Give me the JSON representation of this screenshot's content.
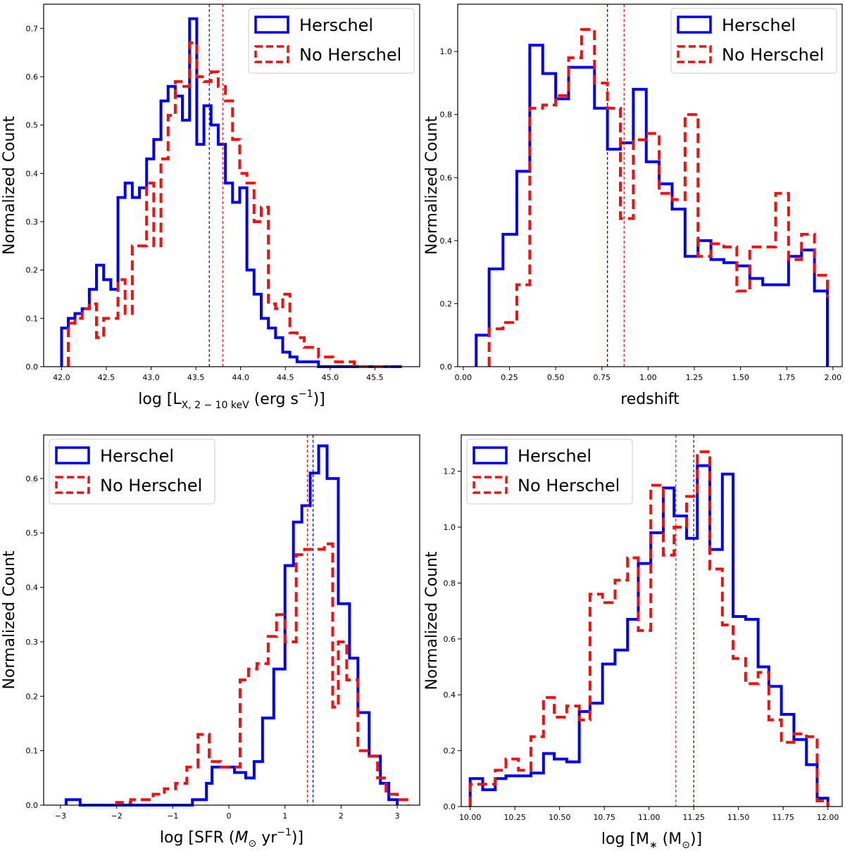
{
  "colors": {
    "herschel": "#0000ee",
    "no_herschel": "#ee1111",
    "axis": "#000000",
    "legend_border": "#cccccc"
  },
  "chart_data": [
    {
      "type": "histogram-step",
      "ylabel": "Normalized Count",
      "xlabel": "log [L",
      "xlabel_sub": "X, 2 − 10 keV",
      "xlabel_tail": " (erg s",
      "xlabel_sup": "−1",
      "xlabel_end": ")]",
      "xlim": [
        41.8,
        46.0
      ],
      "ylim": [
        0,
        0.75
      ],
      "xticks": [
        42.0,
        42.5,
        43.0,
        43.5,
        44.0,
        44.5,
        45.0,
        45.5
      ],
      "xtick_labels": [
        "42.0",
        "42.5",
        "43.0",
        "43.5",
        "44.0",
        "44.5",
        "45.0",
        "45.5"
      ],
      "yticks": [
        0.0,
        0.1,
        0.2,
        0.3,
        0.4,
        0.5,
        0.6,
        0.7
      ],
      "ytick_labels": [
        "0.0",
        "0.1",
        "0.2",
        "0.3",
        "0.4",
        "0.5",
        "0.6",
        "0.7"
      ],
      "legend_position": "upper right",
      "series": [
        {
          "name": "Herschel",
          "style": "solid",
          "color_key": "herschel",
          "median": 43.65,
          "edges": [
            42.0,
            42.075,
            42.15,
            42.23,
            42.31,
            42.39,
            42.47,
            42.55,
            42.63,
            42.71,
            42.79,
            42.87,
            42.95,
            43.03,
            43.11,
            43.19,
            43.27,
            43.35,
            43.43,
            43.51,
            43.59,
            43.67,
            43.75,
            43.83,
            43.91,
            43.99,
            44.07,
            44.15,
            44.23,
            44.31,
            44.39,
            44.47,
            44.55,
            44.63,
            44.71,
            44.79,
            44.87,
            44.95,
            45.03,
            45.11,
            45.19,
            45.27,
            45.35,
            45.43,
            45.51,
            45.59,
            45.67,
            45.8
          ],
          "values": [
            0.08,
            0.1,
            0.11,
            0.12,
            0.16,
            0.21,
            0.18,
            0.16,
            0.35,
            0.38,
            0.35,
            0.37,
            0.43,
            0.47,
            0.55,
            0.58,
            0.56,
            0.51,
            0.72,
            0.46,
            0.54,
            0.5,
            0.46,
            0.38,
            0.34,
            0.37,
            0.2,
            0.15,
            0.1,
            0.08,
            0.06,
            0.03,
            0.02,
            0.01,
            0.01,
            0.01,
            0,
            0,
            0,
            0,
            0,
            0,
            0,
            0,
            0,
            0,
            0
          ]
        },
        {
          "name": "No Herschel",
          "style": "dashed",
          "color_key": "no_herschel",
          "median": 43.8,
          "edges": [
            42.075,
            42.15,
            42.23,
            42.31,
            42.39,
            42.47,
            42.55,
            42.63,
            42.71,
            42.79,
            42.87,
            42.95,
            43.03,
            43.11,
            43.19,
            43.27,
            43.35,
            43.43,
            43.51,
            43.59,
            43.67,
            43.75,
            43.83,
            43.91,
            43.99,
            44.07,
            44.15,
            44.23,
            44.31,
            44.39,
            44.47,
            44.55,
            44.63,
            44.71,
            44.79,
            44.87,
            44.95,
            45.03,
            45.11,
            45.19,
            45.27,
            45.35,
            45.43,
            45.51,
            45.59,
            45.67
          ],
          "values": [
            0.09,
            0.1,
            0.12,
            0.13,
            0.06,
            0.1,
            0.1,
            0.18,
            0.11,
            0.25,
            0.25,
            0.38,
            0.25,
            0.43,
            0.52,
            0.59,
            0.58,
            0.67,
            0.6,
            0.59,
            0.61,
            0.58,
            0.55,
            0.47,
            0.4,
            0.38,
            0.3,
            0.33,
            0.13,
            0.12,
            0.15,
            0.07,
            0.06,
            0.04,
            0.04,
            0.02,
            0.02,
            0.01,
            0.01,
            0.01,
            0,
            0,
            0,
            0,
            0
          ]
        }
      ]
    },
    {
      "type": "histogram-step",
      "ylabel": "Normalized Count",
      "xlabel": "redshift",
      "xlim": [
        -0.03,
        2.05
      ],
      "ylim": [
        0,
        1.15
      ],
      "xticks": [
        0.0,
        0.25,
        0.5,
        0.75,
        1.0,
        1.25,
        1.5,
        1.75,
        2.0
      ],
      "xtick_labels": [
        "0.00",
        "0.25",
        "0.50",
        "0.75",
        "1.00",
        "1.25",
        "1.50",
        "1.75",
        "2.00"
      ],
      "yticks": [
        0.0,
        0.2,
        0.4,
        0.6,
        0.8,
        1.0
      ],
      "ytick_labels": [
        "0.0",
        "0.2",
        "0.4",
        "0.6",
        "0.8",
        "1.0"
      ],
      "legend_position": "upper right",
      "series": [
        {
          "name": "Herschel",
          "style": "solid",
          "color_key": "herschel",
          "median": 0.78,
          "edges": [
            0.07,
            0.14,
            0.215,
            0.29,
            0.36,
            0.43,
            0.5,
            0.57,
            0.64,
            0.71,
            0.78,
            0.85,
            0.92,
            0.99,
            1.06,
            1.13,
            1.2,
            1.27,
            1.34,
            1.41,
            1.48,
            1.55,
            1.62,
            1.69,
            1.76,
            1.83,
            1.9,
            1.97
          ],
          "values": [
            0.1,
            0.31,
            0.42,
            0.62,
            1.02,
            0.93,
            0.85,
            0.95,
            0.95,
            0.82,
            0.69,
            0.71,
            0.88,
            0.65,
            0.58,
            0.5,
            0.35,
            0.4,
            0.34,
            0.33,
            0.32,
            0.28,
            0.26,
            0.26,
            0.35,
            0.37,
            0.24
          ]
        },
        {
          "name": "No Herschel",
          "style": "dashed",
          "color_key": "no_herschel",
          "median": 0.87,
          "edges": [
            0.14,
            0.215,
            0.29,
            0.36,
            0.43,
            0.5,
            0.57,
            0.64,
            0.71,
            0.78,
            0.85,
            0.92,
            0.99,
            1.06,
            1.13,
            1.2,
            1.27,
            1.34,
            1.41,
            1.48,
            1.55,
            1.62,
            1.69,
            1.76,
            1.83,
            1.9,
            1.97
          ],
          "values": [
            0.12,
            0.14,
            0.26,
            0.82,
            0.83,
            0.86,
            0.98,
            1.07,
            0.9,
            0.82,
            0.47,
            0.72,
            0.74,
            0.55,
            0.53,
            0.8,
            0.35,
            0.39,
            0.38,
            0.24,
            0.38,
            0.38,
            0.55,
            0.34,
            0.42,
            0.29,
            0.22
          ]
        }
      ]
    },
    {
      "type": "histogram-step",
      "ylabel": "Normalized Count",
      "xlabel": "log [SFR (",
      "xlabel_math": "M",
      "xlabel_sub": "⊙",
      "xlabel_tail": " yr",
      "xlabel_sup": "−1",
      "xlabel_end": ")]",
      "xlim": [
        -3.3,
        3.4
      ],
      "ylim": [
        0,
        0.68
      ],
      "xticks": [
        -3,
        -2,
        -1,
        0,
        1,
        2,
        3
      ],
      "xtick_labels": [
        "−3",
        "−2",
        "−1",
        "0",
        "1",
        "2",
        "3"
      ],
      "yticks": [
        0.0,
        0.1,
        0.2,
        0.3,
        0.4,
        0.5,
        0.6
      ],
      "ytick_labels": [
        "0.0",
        "0.1",
        "0.2",
        "0.3",
        "0.4",
        "0.5",
        "0.6"
      ],
      "legend_position": "upper left",
      "series": [
        {
          "name": "Herschel",
          "style": "solid",
          "color_key": "herschel",
          "median": 1.5,
          "edges": [
            -2.9,
            -2.65,
            -2.4,
            -2.15,
            -1.9,
            -1.65,
            -1.4,
            -1.15,
            -0.9,
            -0.65,
            -0.4,
            -0.3,
            -0.1,
            0.1,
            0.3,
            0.45,
            0.6,
            0.8,
            1.0,
            1.15,
            1.3,
            1.45,
            1.6,
            1.75,
            1.95,
            2.15,
            2.3,
            2.5,
            2.7,
            2.85,
            3.0
          ],
          "values": [
            0.01,
            0,
            0,
            0,
            0,
            0,
            0,
            0,
            0,
            0.01,
            0.04,
            0.07,
            0.07,
            0.06,
            0.05,
            0.08,
            0.16,
            0.25,
            0.44,
            0.52,
            0.55,
            0.61,
            0.66,
            0.6,
            0.37,
            0.27,
            0.17,
            0.09,
            0.04,
            0.01
          ]
        },
        {
          "name": "No Herschel",
          "style": "dashed",
          "color_key": "no_herschel",
          "median": 1.4,
          "edges": [
            -2.0,
            -1.75,
            -1.55,
            -1.35,
            -1.15,
            -0.95,
            -0.75,
            -0.55,
            -0.35,
            -0.15,
            0.0,
            0.2,
            0.35,
            0.5,
            0.7,
            0.85,
            1.0,
            1.2,
            1.35,
            1.5,
            1.7,
            1.85,
            1.95,
            2.1,
            2.3,
            2.5,
            2.65,
            2.8,
            3.0,
            3.2
          ],
          "values": [
            0.005,
            0.01,
            0.01,
            0.02,
            0.03,
            0.04,
            0.07,
            0.13,
            0.08,
            0.07,
            0.07,
            0.23,
            0.25,
            0.26,
            0.31,
            0.35,
            0.3,
            0.46,
            0.47,
            0.47,
            0.48,
            0.18,
            0.3,
            0.23,
            0.1,
            0.09,
            0.05,
            0.02,
            0.01
          ]
        }
      ]
    },
    {
      "type": "histogram-step",
      "ylabel": "Normalized Count",
      "xlabel": "log [M",
      "xlabel_sub": "∗",
      "xlabel_tail": " (M",
      "xlabel_sub2": "⊙",
      "xlabel_end": ")]",
      "xlim": [
        9.95,
        12.08
      ],
      "ylim": [
        0,
        1.33
      ],
      "xticks": [
        10.0,
        10.25,
        10.5,
        10.75,
        11.0,
        11.25,
        11.5,
        11.75,
        12.0
      ],
      "xtick_labels": [
        "10.00",
        "10.25",
        "10.50",
        "10.75",
        "11.00",
        "11.25",
        "11.50",
        "11.75",
        "12.00"
      ],
      "yticks": [
        0.0,
        0.2,
        0.4,
        0.6,
        0.8,
        1.0,
        1.2
      ],
      "ytick_labels": [
        "0.0",
        "0.2",
        "0.4",
        "0.6",
        "0.8",
        "1.0",
        "1.2"
      ],
      "legend_position": "upper left",
      "series": [
        {
          "name": "Herschel",
          "style": "solid",
          "color_key": "herschel",
          "median": 11.25,
          "edges": [
            10.0,
            10.07,
            10.14,
            10.2,
            10.27,
            10.34,
            10.41,
            10.47,
            10.54,
            10.61,
            10.67,
            10.74,
            10.81,
            10.88,
            10.94,
            11.01,
            11.08,
            11.14,
            11.21,
            11.27,
            11.34,
            11.41,
            11.47,
            11.54,
            11.61,
            11.67,
            11.74,
            11.81,
            11.88,
            11.94,
            12.0
          ],
          "values": [
            0.1,
            0.06,
            0.1,
            0.11,
            0.11,
            0.12,
            0.19,
            0.17,
            0.16,
            0.34,
            0.37,
            0.51,
            0.56,
            0.67,
            0.87,
            0.98,
            1.14,
            1.04,
            0.96,
            1.22,
            0.92,
            1.19,
            0.68,
            0.67,
            0.5,
            0.43,
            0.33,
            0.24,
            0.15,
            0.03
          ]
        },
        {
          "name": "No Herschel",
          "style": "dashed",
          "color_key": "no_herschel",
          "median": 11.15,
          "edges": [
            10.0,
            10.07,
            10.14,
            10.2,
            10.27,
            10.34,
            10.41,
            10.47,
            10.54,
            10.61,
            10.67,
            10.74,
            10.81,
            10.88,
            10.94,
            11.01,
            11.08,
            11.14,
            11.21,
            11.27,
            11.34,
            11.41,
            11.47,
            11.54,
            11.61,
            11.67,
            11.74,
            11.81,
            11.88,
            11.94,
            12.0
          ],
          "values": [
            0.08,
            0.08,
            0.13,
            0.17,
            0.13,
            0.25,
            0.39,
            0.32,
            0.36,
            0.31,
            0.76,
            0.73,
            0.81,
            0.89,
            0.63,
            1.15,
            0.9,
            1.0,
            1.11,
            1.27,
            0.85,
            0.65,
            0.53,
            0.44,
            0.48,
            0.31,
            0.23,
            0.26,
            0.25,
            0.02
          ]
        }
      ]
    }
  ]
}
